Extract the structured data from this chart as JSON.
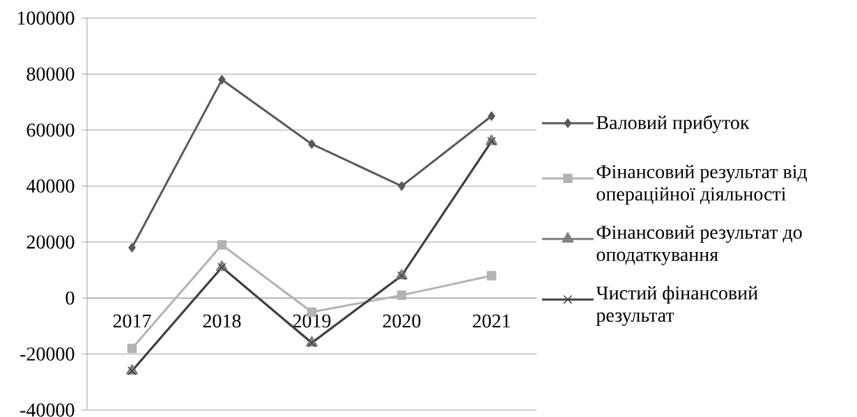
{
  "chart_data": {
    "type": "line",
    "categories": [
      "2017",
      "2018",
      "2019",
      "2020",
      "2021"
    ],
    "series": [
      {
        "name": "Валовий прибуток",
        "color": "#595959",
        "marker": "diamond",
        "values": [
          18000,
          78000,
          55000,
          40000,
          65000
        ]
      },
      {
        "name": "Фінансовий результат від операційної діяльності",
        "color": "#b3b3b3",
        "marker": "square",
        "values": [
          -18000,
          19000,
          -5000,
          1000,
          8000
        ]
      },
      {
        "name": "Фінансовий результат до оподаткування",
        "color": "#808080",
        "marker": "triangle",
        "values": [
          -26000,
          11000,
          -16000,
          8000,
          56000
        ]
      },
      {
        "name": "Чистий фінансовий результат",
        "color": "#404040",
        "marker": "cross",
        "values": [
          -26000,
          11000,
          -16000,
          8000,
          56000
        ]
      }
    ],
    "ylim": [
      -40000,
      100000
    ],
    "yticks": [
      -40000,
      -20000,
      0,
      20000,
      40000,
      60000,
      80000,
      100000
    ],
    "grid": "y",
    "legend": "right",
    "line_style": "solid"
  }
}
